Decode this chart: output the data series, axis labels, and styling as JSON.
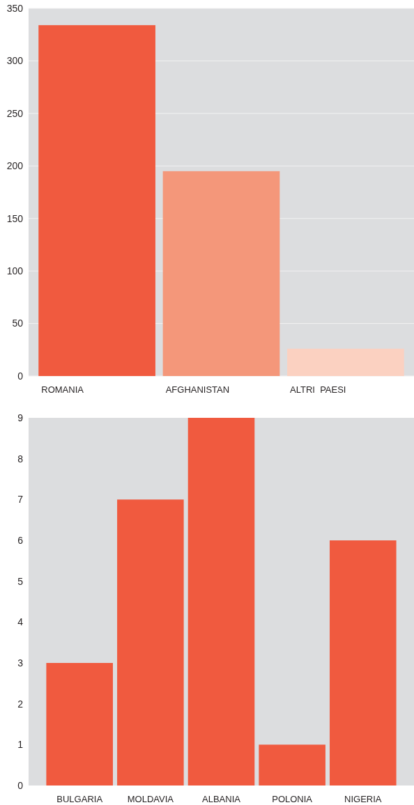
{
  "chart_data": [
    {
      "type": "bar",
      "categories": [
        "ROMANIA",
        "AFGHANISTAN",
        "ALTRI  PAESI"
      ],
      "values": [
        334,
        195,
        26
      ],
      "colors": [
        "#f05a3f",
        "#f4977a",
        "#fbd1c1"
      ],
      "ylim": [
        0,
        350
      ],
      "yticks": [
        0,
        50,
        100,
        150,
        200,
        250,
        300,
        350
      ],
      "grid": "y"
    },
    {
      "type": "bar",
      "categories": [
        "BULGARIA",
        "MOLDAVIA",
        "ALBANIA",
        "POLONIA",
        "NIGERIA"
      ],
      "values": [
        3,
        7,
        9,
        1,
        6
      ],
      "color": "#f05a3f",
      "ylim": [
        0,
        9
      ],
      "yticks": [
        0,
        1,
        2,
        3,
        4,
        5,
        6,
        7,
        8,
        9
      ],
      "grid": false
    }
  ]
}
